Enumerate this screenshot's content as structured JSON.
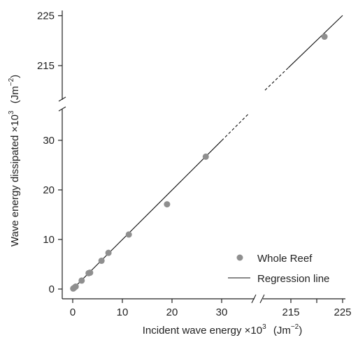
{
  "chart_data": {
    "type": "scatter",
    "xlabel_main": "Incident wave energy ×10",
    "xlabel_exp": "3",
    "xlabel_unit": "(Jm",
    "xlabel_unit_exp": "−2",
    "xlabel_unit_close": ")",
    "ylabel_main": "Wave energy dissipated ×10",
    "ylabel_exp": "3",
    "ylabel_unit": "(Jm",
    "ylabel_unit_exp": "−2",
    "ylabel_unit_close": ")",
    "x_ticks_lower": [
      "0",
      "10",
      "20",
      "30"
    ],
    "x_ticks_upper": [
      "215",
      "220",
      "225"
    ],
    "x_ticks_upper_labels": [
      "215",
      "225"
    ],
    "y_ticks_lower": [
      "0",
      "10",
      "20",
      "30"
    ],
    "y_ticks_upper": [
      "215",
      "225"
    ],
    "axis_break": "broken x and y axes between ~35 and ~210",
    "legend_position": "bottom-right",
    "series": [
      {
        "name": "Whole Reef",
        "kind": "points",
        "color": "#8f8f8f",
        "x": [
          0.1,
          0.3,
          0.6,
          1.8,
          3.2,
          3.5,
          5.8,
          7.2,
          11.3,
          19.0,
          26.8,
          221.5
        ],
        "y": [
          0.1,
          0.25,
          0.5,
          1.7,
          3.2,
          3.3,
          5.7,
          7.3,
          11.0,
          17.1,
          26.7,
          220.8
        ]
      },
      {
        "name": "Regression line",
        "kind": "line",
        "color": "#111111",
        "slope": 0.998,
        "intercept": 0
      }
    ]
  }
}
